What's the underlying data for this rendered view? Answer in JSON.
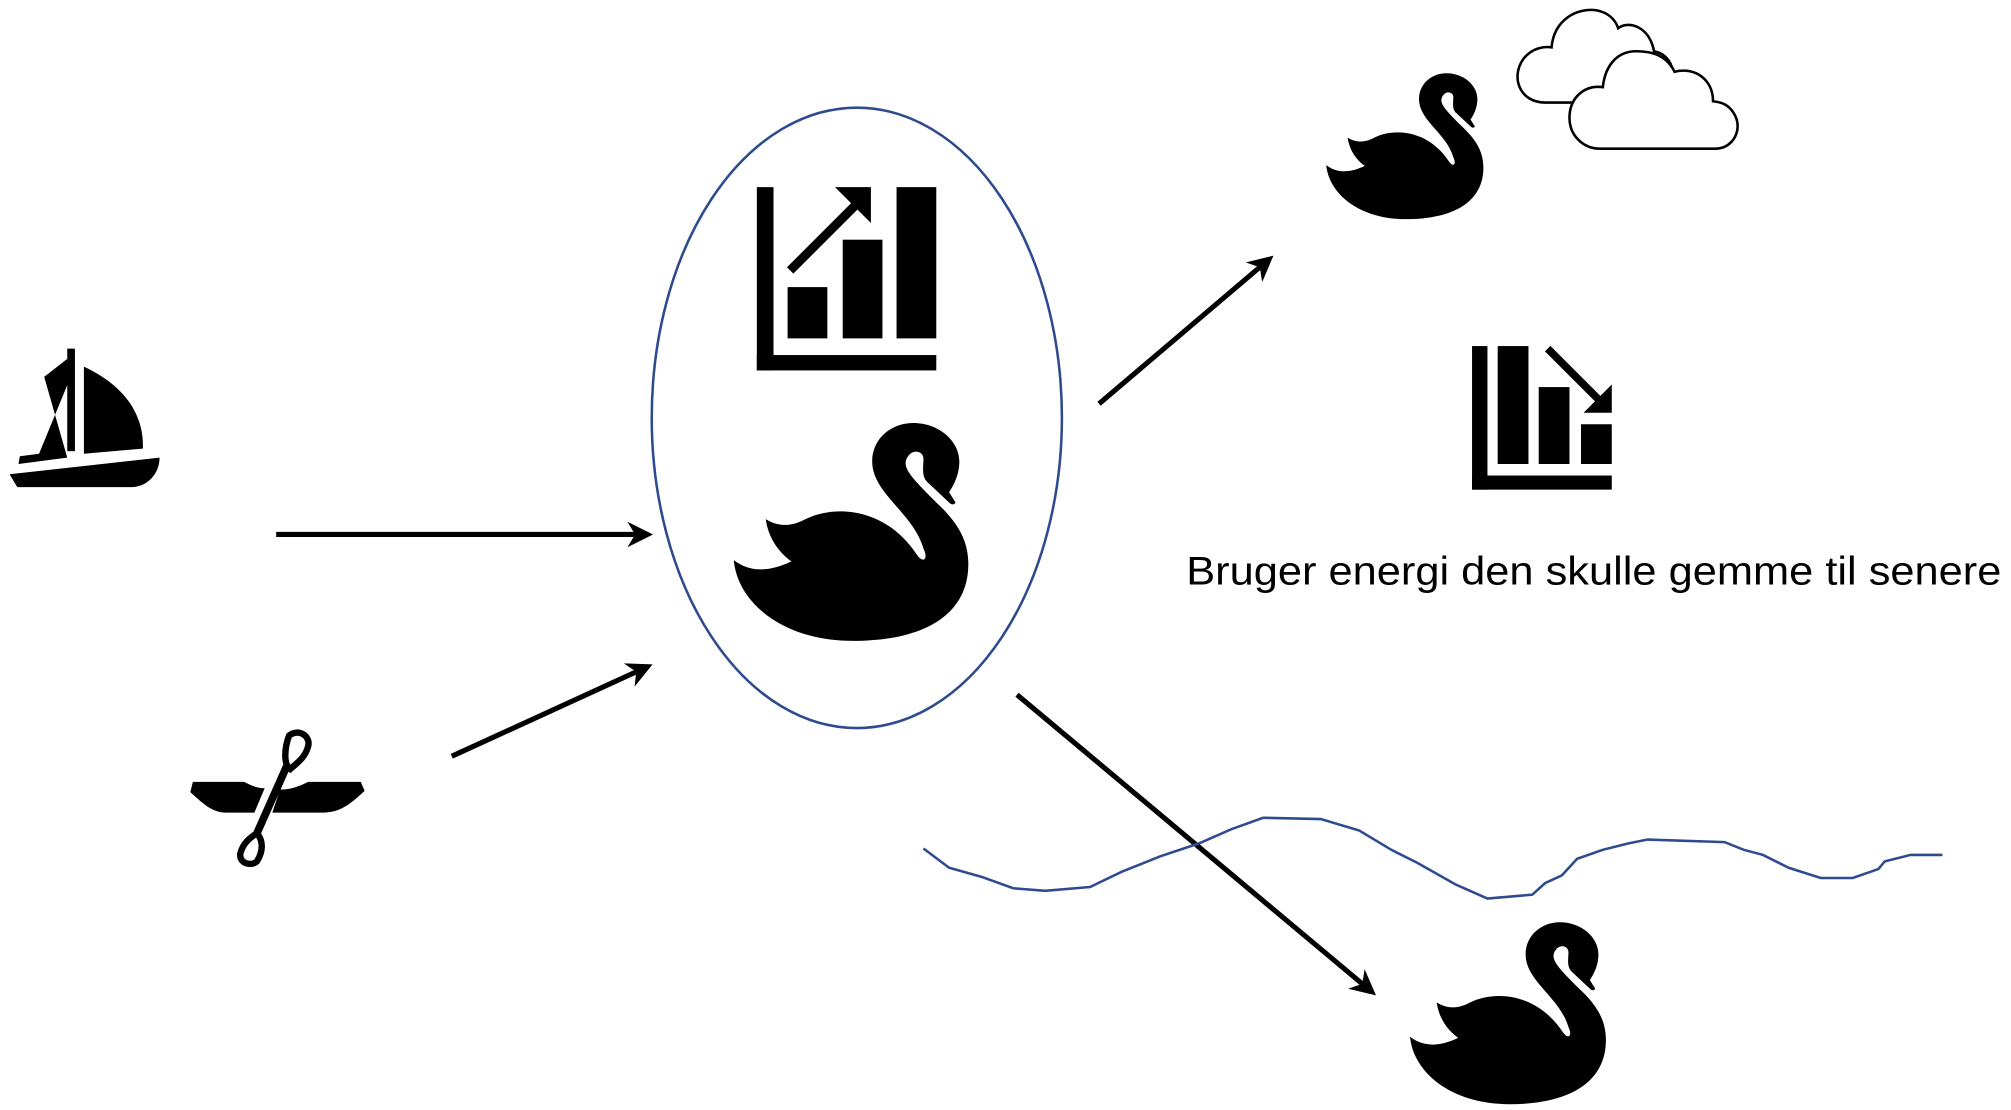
{
  "caption": "Bruger energi den skulle gemme til senere"
}
